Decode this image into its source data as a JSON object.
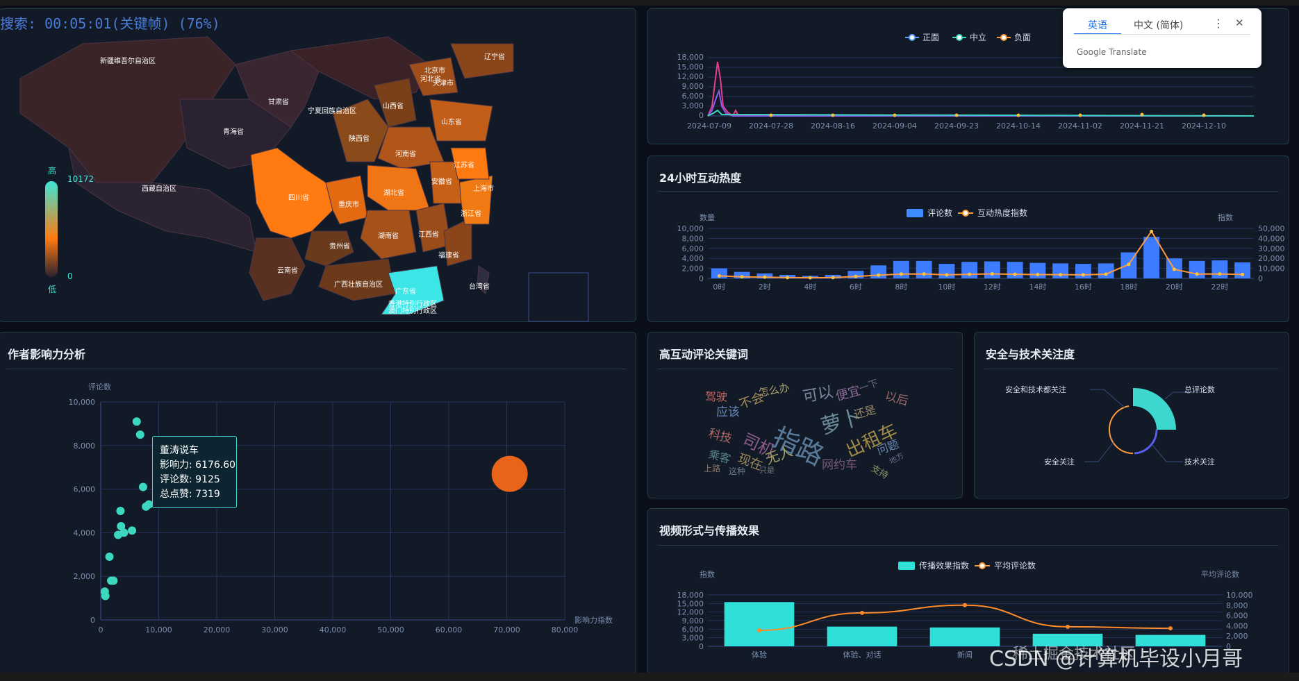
{
  "header": {
    "search_text": "搜索: 00:05:01(关键帧) (76%)"
  },
  "map": {
    "legend_high": "高",
    "legend_low": "低",
    "legend_max": "10172",
    "legend_min": "0",
    "provinces": [
      "新疆维吾尔自治区",
      "西藏自治区",
      "青海省",
      "甘肃省",
      "宁夏回族自治区",
      "四川省",
      "云南省",
      "贵州省",
      "重庆市",
      "陕西省",
      "山西省",
      "河南省",
      "湖北省",
      "湖南省",
      "广西壮族自治区",
      "广东省",
      "江西省",
      "福建省",
      "浙江省",
      "安徽省",
      "江苏省",
      "上海市",
      "山东省",
      "河北省",
      "北京市",
      "天津市",
      "辽宁省",
      "台湾省",
      "香港特别行政区",
      "澳门特别行政区"
    ],
    "colors": {
      "high": "#ff7a10",
      "mid": "#8f4a1a",
      "low": "#2a2230",
      "highlight": "#3de6e6"
    }
  },
  "sentiment": {
    "legend": [
      "正面",
      "中立",
      "负面"
    ],
    "y_ticks": [
      "18,000",
      "15,000",
      "12,000",
      "9,000",
      "6,000",
      "3,000",
      "0"
    ],
    "x_ticks": [
      "2024-07-09",
      "2024-07-28",
      "2024-08-16",
      "2024-09-04",
      "2024-09-23",
      "2024-10-14",
      "2024-11-02",
      "2024-11-21",
      "2024-12-10"
    ]
  },
  "translate": {
    "tab_en": "英语",
    "tab_zh": "中文 (简体)",
    "footer": "Google Translate",
    "menu": "⋮",
    "close": "✕"
  },
  "hourly": {
    "title": "24小时互动热度",
    "legend": [
      "评论数",
      "互动热度指数"
    ],
    "left_label": "数量",
    "right_label": "指数",
    "left_ticks": [
      "10,000",
      "8,000",
      "6,000",
      "4,000",
      "2,000",
      "0"
    ],
    "right_ticks": [
      "50,000",
      "40,000",
      "30,000",
      "20,000",
      "10,000",
      "0"
    ],
    "x_ticks": [
      "0时",
      "2时",
      "4时",
      "6时",
      "8时",
      "10时",
      "12时",
      "14时",
      "16时",
      "18时",
      "20时",
      "22时"
    ],
    "chart_data": {
      "type": "bar",
      "categories": [
        "0时",
        "1时",
        "2时",
        "3时",
        "4时",
        "5时",
        "6时",
        "7时",
        "8时",
        "9时",
        "10时",
        "11时",
        "12时",
        "13时",
        "14时",
        "15时",
        "16时",
        "17时",
        "18时",
        "19时",
        "20时",
        "21时",
        "22时",
        "23时"
      ],
      "series": [
        {
          "name": "评论数",
          "values": [
            2000,
            1300,
            1000,
            700,
            500,
            700,
            1500,
            2600,
            3500,
            3500,
            2900,
            3300,
            3400,
            3300,
            3100,
            3000,
            2900,
            3000,
            5200,
            8300,
            4000,
            3500,
            3600,
            3200
          ]
        },
        {
          "name": "互动热度指数",
          "values": [
            2500,
            1600,
            1200,
            800,
            600,
            800,
            1900,
            3200,
            4300,
            4400,
            3600,
            4100,
            4500,
            4100,
            3800,
            3700,
            3600,
            4200,
            14000,
            47000,
            9000,
            4300,
            4400,
            3900
          ]
        }
      ],
      "ylim": [
        0,
        10000
      ],
      "y2lim": [
        0,
        50000
      ]
    }
  },
  "author": {
    "title": "作者影响力分析",
    "ylabel": "评论数",
    "xlabel": "影响力指数",
    "y_ticks": [
      "10,000",
      "8,000",
      "6,000",
      "4,000",
      "2,000",
      "0"
    ],
    "x_ticks": [
      "0",
      "10,000",
      "20,000",
      "30,000",
      "40,000",
      "50,000",
      "60,000",
      "70,000",
      "80,000"
    ],
    "tooltip": {
      "name": "董涛说车",
      "influence": "影响力: 6176.60",
      "comments": "评论数: 9125",
      "likes": "总点赞: 7319"
    },
    "chart_data": {
      "type": "scatter",
      "xlim": [
        0,
        80000
      ],
      "ylim": [
        0,
        10000
      ],
      "points": [
        {
          "x": 6200,
          "y": 9100
        },
        {
          "x": 6800,
          "y": 8500
        },
        {
          "x": 7300,
          "y": 6100
        },
        {
          "x": 7800,
          "y": 5200
        },
        {
          "x": 8300,
          "y": 5300
        },
        {
          "x": 3400,
          "y": 5000
        },
        {
          "x": 3500,
          "y": 4300
        },
        {
          "x": 4000,
          "y": 4000
        },
        {
          "x": 3000,
          "y": 3900
        },
        {
          "x": 5400,
          "y": 4100
        },
        {
          "x": 1500,
          "y": 2900
        },
        {
          "x": 1800,
          "y": 1800
        },
        {
          "x": 2200,
          "y": 1800
        },
        {
          "x": 700,
          "y": 1300
        },
        {
          "x": 800,
          "y": 1100
        },
        {
          "x": 70500,
          "y": 6700,
          "big": true
        }
      ]
    }
  },
  "keywords": {
    "title": "高互动评论关键词",
    "words": [
      "驾驶",
      "应该",
      "不会",
      "怎么办",
      "可以",
      "便宜",
      "一下",
      "以后",
      "萝卜",
      "还是",
      "科技",
      "司机",
      "指路",
      "出租车",
      "乘客",
      "现在",
      "无人",
      "网约车",
      "问题",
      "上路",
      "这种",
      "只是",
      "支持",
      "地方"
    ]
  },
  "security": {
    "title": "安全与技术关注度",
    "labels": [
      "安全和技术都关注",
      "总评论数",
      "安全关注",
      "技术关注"
    ],
    "chart_data": {
      "type": "pie",
      "slices": [
        {
          "name": "总评论数",
          "value": 62
        },
        {
          "name": "技术关注",
          "value": 14
        },
        {
          "name": "安全关注",
          "value": 22
        },
        {
          "name": "安全和技术都关注",
          "value": 2
        }
      ]
    }
  },
  "video": {
    "title": "视频形式与传播效果",
    "legend": [
      "传播效果指数",
      "平均评论数"
    ],
    "left_label": "指数",
    "right_label": "平均评论数",
    "left_ticks": [
      "18,000",
      "15,000",
      "12,000",
      "9,000",
      "6,000",
      "3,000",
      "0"
    ],
    "right_ticks": [
      "10,000",
      "8,000",
      "6,000",
      "4,000",
      "2,000",
      "0"
    ],
    "x_ticks": [
      "体验",
      "体验、对话",
      "新闻"
    ],
    "chart_data": {
      "type": "bar",
      "categories": [
        "体验",
        "体验、对话",
        "新闻",
        "",
        ""
      ],
      "series": [
        {
          "name": "传播效果指数",
          "values": [
            15500,
            6900,
            6600,
            4400,
            4000
          ]
        },
        {
          "name": "平均评论数",
          "values": [
            3100,
            6500,
            8000,
            3800,
            3500
          ]
        }
      ],
      "ylim": [
        0,
        18000
      ],
      "y2lim": [
        0,
        10000
      ]
    }
  },
  "watermark": "CSDN @计算机毕设小月哥",
  "watermark2": "稀土掘金技术社区"
}
